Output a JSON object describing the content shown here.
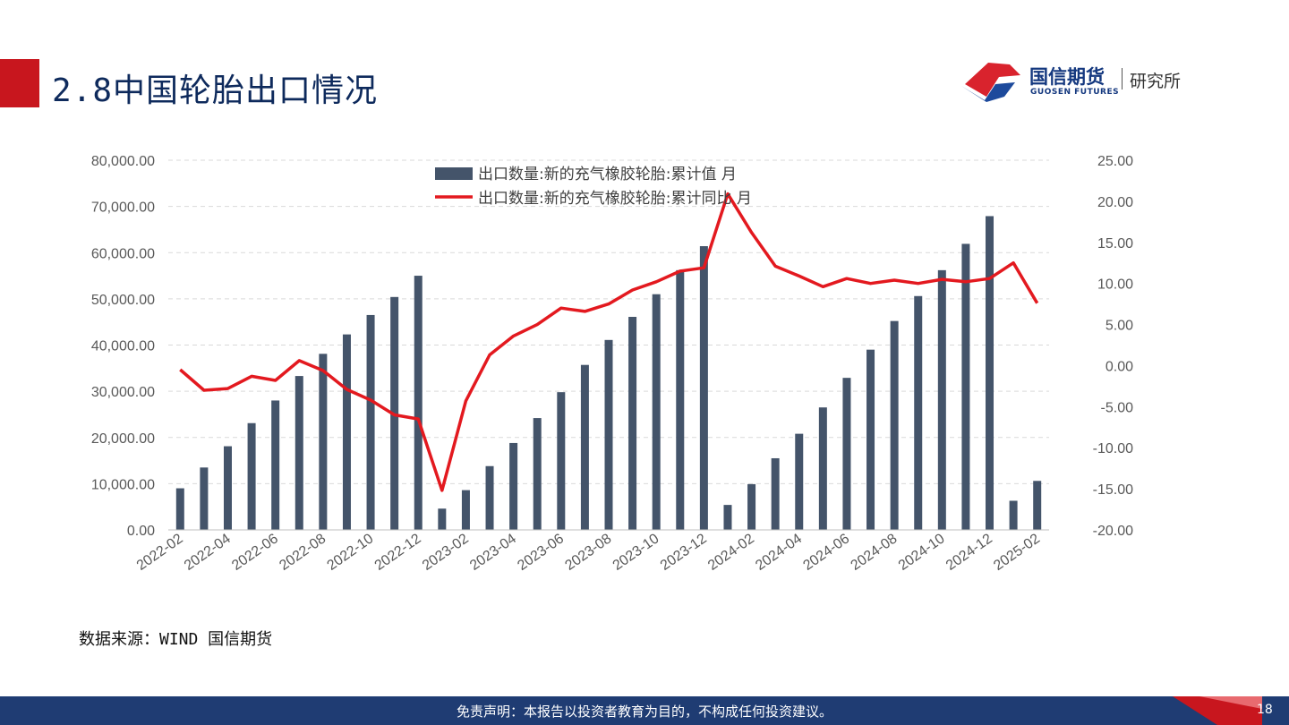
{
  "page": {
    "title": "2.8中国轮胎出口情况",
    "source_note": "数据来源：WIND  国信期货",
    "disclaimer": "免责声明：本报告以投资者教育为目的，不构成任何投资建议。",
    "page_number": "18"
  },
  "logo": {
    "cn_name": "国信期货",
    "en_name": "GUOSEN FUTURES",
    "dept": "研究所",
    "colors": {
      "red": "#d9232d",
      "blue": "#1d4a9c"
    }
  },
  "colors": {
    "accent_red": "#c8161e",
    "title_navy": "#0e2a5c",
    "footer_navy": "#1f3c73",
    "bar": "#44546a",
    "line": "#e3191f"
  },
  "chart_data": {
    "type": "bar+line",
    "categories": [
      "2022-02",
      "2022-03",
      "2022-04",
      "2022-05",
      "2022-06",
      "2022-07",
      "2022-08",
      "2022-09",
      "2022-10",
      "2022-11",
      "2022-12",
      "2023-01",
      "2023-02",
      "2023-03",
      "2023-04",
      "2023-05",
      "2023-06",
      "2023-07",
      "2023-08",
      "2023-09",
      "2023-10",
      "2023-11",
      "2023-12",
      "2024-01",
      "2024-02",
      "2024-03",
      "2024-04",
      "2024-05",
      "2024-06",
      "2024-07",
      "2024-08",
      "2024-09",
      "2024-10",
      "2024-11",
      "2024-12",
      "2025-01",
      "2025-02"
    ],
    "x_tick_labels": [
      "2022-02",
      "2022-04",
      "2022-06",
      "2022-08",
      "2022-10",
      "2022-12",
      "2023-02",
      "2023-04",
      "2023-06",
      "2023-08",
      "2023-10",
      "2023-12",
      "2024-02",
      "2024-04",
      "2024-06",
      "2024-08",
      "2024-10",
      "2024-12",
      "2025-02"
    ],
    "series": [
      {
        "name": "出口数量:新的充气橡胶轮胎:累计值 月",
        "type": "bar",
        "axis": "left",
        "color": "#44546a",
        "values": [
          9000,
          13500,
          18100,
          23100,
          28000,
          33300,
          38100,
          42300,
          46500,
          50400,
          55000,
          4600,
          8600,
          13800,
          18800,
          24200,
          29800,
          35700,
          41100,
          46100,
          51000,
          56200,
          61400,
          5400,
          9900,
          15500,
          20800,
          26500,
          32900,
          39000,
          45200,
          50600,
          56200,
          61900,
          67900,
          6300,
          10600
        ]
      },
      {
        "name": "出口数量:新的充气橡胶轮胎:累计同比 月",
        "type": "line",
        "axis": "right",
        "color": "#e3191f",
        "values": [
          -0.5,
          -3.0,
          -2.8,
          -1.3,
          -1.8,
          0.6,
          -0.6,
          -2.9,
          -4.2,
          -6.0,
          -6.5,
          -15.2,
          -4.3,
          1.3,
          3.6,
          5.0,
          7.0,
          6.6,
          7.5,
          9.2,
          10.2,
          11.5,
          11.9,
          20.9,
          16.2,
          12.1,
          10.9,
          9.6,
          10.6,
          10.0,
          10.4,
          10.0,
          10.5,
          10.2,
          10.6,
          12.5,
          7.6
        ]
      }
    ],
    "y_left": {
      "min": 0,
      "max": 80000,
      "step": 10000,
      "tick_labels": [
        "0.00",
        "10,000.00",
        "20,000.00",
        "30,000.00",
        "40,000.00",
        "50,000.00",
        "60,000.00",
        "70,000.00",
        "80,000.00"
      ]
    },
    "y_right": {
      "min": -20,
      "max": 25,
      "step": 5,
      "tick_labels": [
        "-20.00",
        "-15.00",
        "-10.00",
        "-5.00",
        "0.00",
        "5.00",
        "10.00",
        "15.00",
        "20.00",
        "25.00"
      ]
    },
    "grid": true,
    "legend_position": "top-center"
  }
}
